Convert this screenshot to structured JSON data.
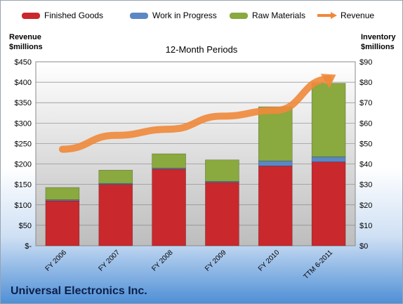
{
  "legend": {
    "finished_goods": "Finished Goods",
    "wip": "Work in Progress",
    "raw": "Raw Materials",
    "revenue": "Revenue"
  },
  "left_axis_title": [
    "Revenue",
    "$millions"
  ],
  "right_axis_title": [
    "Inventory",
    "$millions"
  ],
  "company_name": "Universal Electronics Inc.",
  "chart_data": {
    "type": "bar",
    "title": "12-Month Periods",
    "categories": [
      "FY 2006",
      "FY 2007",
      "FY 2008",
      "FY 2009",
      "FY 2010",
      "TTM 6-2011"
    ],
    "stacked": true,
    "left_axis": {
      "label": "Revenue $millions",
      "ylim": [
        0,
        450
      ],
      "ticks": [
        "$-",
        "$50",
        "$100",
        "$150",
        "$200",
        "$250",
        "$300",
        "$350",
        "$400",
        "$450"
      ]
    },
    "right_axis": {
      "label": "Inventory $millions",
      "ylim": [
        0,
        90
      ],
      "ticks": [
        "$0",
        "$10",
        "$20",
        "$30",
        "$40",
        "$50",
        "$60",
        "$70",
        "$80",
        "$90"
      ]
    },
    "series": [
      {
        "name": "Finished Goods",
        "axis": "right",
        "type": "bar",
        "values": [
          22,
          30,
          37.5,
          31,
          39,
          41
        ]
      },
      {
        "name": "Work in Progress",
        "axis": "right",
        "type": "bar",
        "values": [
          0.5,
          0.5,
          0.5,
          0.5,
          2.5,
          2.5
        ]
      },
      {
        "name": "Raw Materials",
        "axis": "right",
        "type": "bar",
        "values": [
          6,
          6.5,
          7,
          10.5,
          26.5,
          36
        ]
      },
      {
        "name": "Revenue",
        "axis": "left",
        "type": "line",
        "values": [
          236,
          270,
          285,
          317,
          331,
          408
        ]
      }
    ],
    "colors": {
      "finished_goods": "#c9282d",
      "wip": "#5b87c5",
      "raw": "#8aa93e",
      "revenue": "#f0883a"
    },
    "grid": true,
    "legend_position": "top"
  }
}
